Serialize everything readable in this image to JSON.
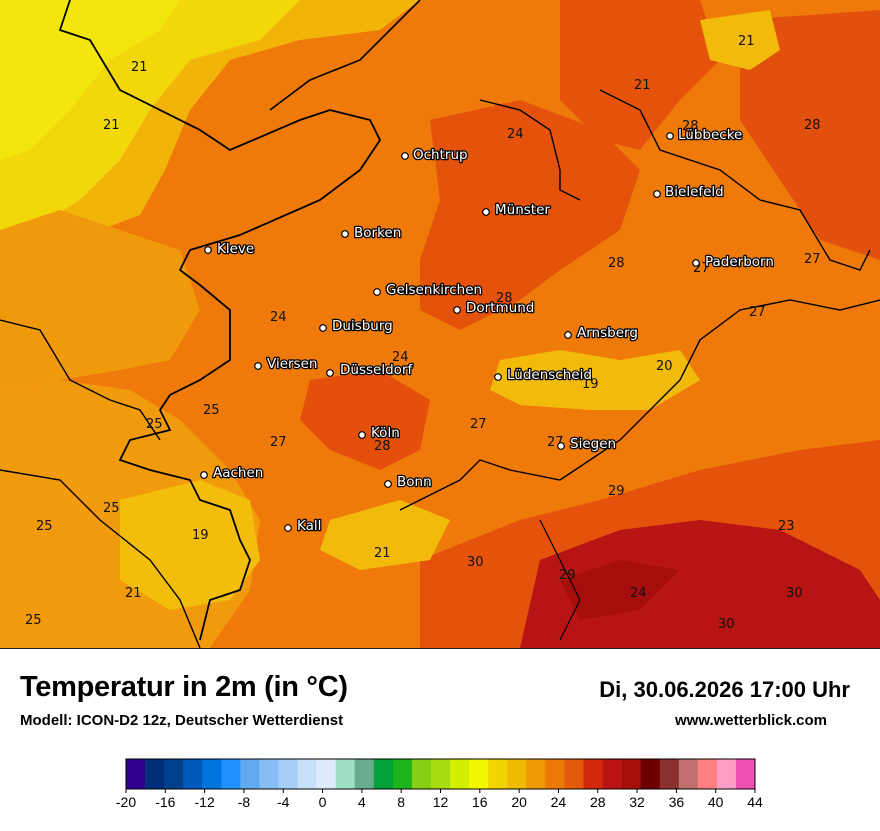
{
  "header": {
    "title": "Temperatur in 2m (in °C)",
    "model": "Modell: ICON-D2 12z, Deutscher Wetterdienst",
    "datetime": "Di, 30.06.2026 17:00 Uhr",
    "website": "www.wetterblick.com"
  },
  "cities": [
    {
      "name": "Ochtrup"
    },
    {
      "name": "Lübbecke"
    },
    {
      "name": "Bielefeld"
    },
    {
      "name": "Münster"
    },
    {
      "name": "Borken"
    },
    {
      "name": "Kleve"
    },
    {
      "name": "Paderborn"
    },
    {
      "name": "Gelsenkirchen"
    },
    {
      "name": "Dortmund"
    },
    {
      "name": "Duisburg"
    },
    {
      "name": "Arnsberg"
    },
    {
      "name": "Viersen"
    },
    {
      "name": "Düsseldorf"
    },
    {
      "name": "Lüdenscheid"
    },
    {
      "name": "Köln"
    },
    {
      "name": "Siegen"
    },
    {
      "name": "Aachen"
    },
    {
      "name": "Bonn"
    },
    {
      "name": "Kall"
    }
  ],
  "temperature_labels": [
    "21",
    "21",
    "21",
    "21",
    "28",
    "24",
    "28",
    "28",
    "27",
    "27",
    "28",
    "24",
    "24",
    "27",
    "19",
    "20",
    "25",
    "25",
    "27",
    "28",
    "27",
    "27",
    "25",
    "25",
    "19",
    "29",
    "23",
    "21",
    "30",
    "29",
    "24",
    "21",
    "30",
    "30",
    "25"
  ],
  "legend": {
    "colors": [
      "#310090",
      "#002e7a",
      "#003f8c",
      "#0058b8",
      "#0074dd",
      "#1e90ff",
      "#62a9f0",
      "#87bdf5",
      "#a8cef5",
      "#c9e0fa",
      "#dcecfc",
      "#9fdfc3",
      "#6aad8e",
      "#00a239",
      "#1cb31b",
      "#86cf14",
      "#a9dc10",
      "#d2ef02",
      "#f3f800",
      "#f2d500",
      "#efbc02",
      "#f09802",
      "#ed7a07",
      "#e35a0b",
      "#d1280c",
      "#b81414",
      "#a60e0e",
      "#6e0000",
      "#8c2f2f",
      "#c17070",
      "#ff8080",
      "#ff9ec5",
      "#ee4fb0"
    ],
    "ticks": [
      "-20",
      "-16",
      "-12",
      "-8",
      "-4",
      "0",
      "4",
      "8",
      "12",
      "16",
      "20",
      "24",
      "28",
      "32",
      "36",
      "40",
      "44"
    ]
  }
}
